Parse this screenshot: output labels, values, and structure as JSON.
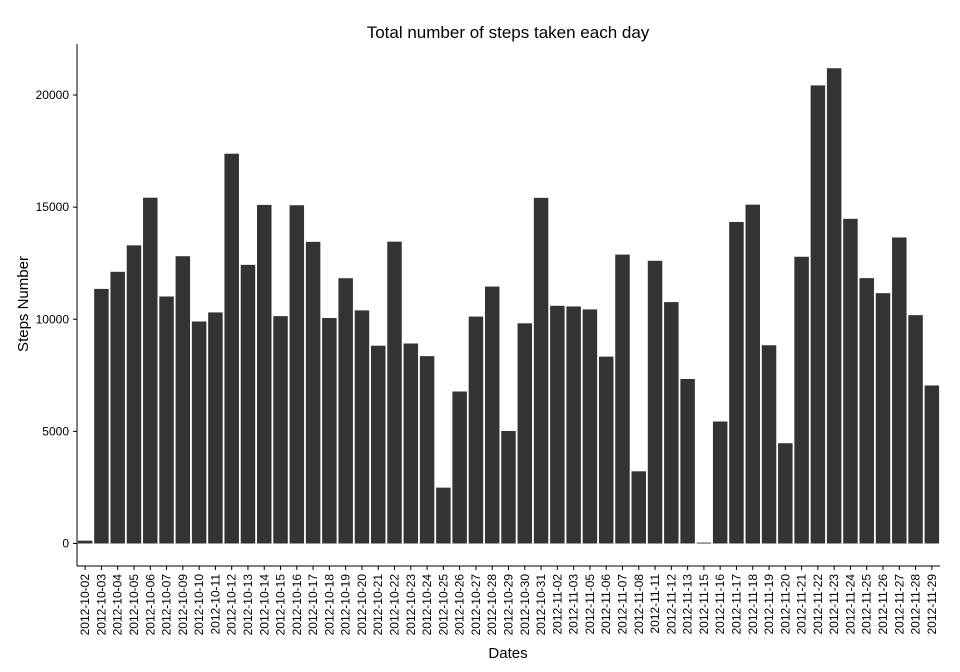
{
  "chart_data": {
    "type": "bar",
    "title": "Total number of steps taken each day",
    "xlabel": "Dates",
    "ylabel": "Steps Number",
    "ylim": [
      0,
      22500
    ],
    "yticks": [
      0,
      5000,
      10000,
      15000,
      20000
    ],
    "grid": false,
    "bar_color": "#333333",
    "categories": [
      "2012-10-02",
      "2012-10-03",
      "2012-10-04",
      "2012-10-05",
      "2012-10-06",
      "2012-10-07",
      "2012-10-09",
      "2012-10-10",
      "2012-10-11",
      "2012-10-12",
      "2012-10-13",
      "2012-10-14",
      "2012-10-15",
      "2012-10-16",
      "2012-10-17",
      "2012-10-18",
      "2012-10-19",
      "2012-10-20",
      "2012-10-21",
      "2012-10-22",
      "2012-10-23",
      "2012-10-24",
      "2012-10-25",
      "2012-10-26",
      "2012-10-27",
      "2012-10-28",
      "2012-10-29",
      "2012-10-30",
      "2012-10-31",
      "2012-11-02",
      "2012-11-03",
      "2012-11-05",
      "2012-11-06",
      "2012-11-07",
      "2012-11-08",
      "2012-11-11",
      "2012-11-12",
      "2012-11-13",
      "2012-11-15",
      "2012-11-16",
      "2012-11-17",
      "2012-11-18",
      "2012-11-19",
      "2012-11-20",
      "2012-11-21",
      "2012-11-22",
      "2012-11-23",
      "2012-11-24",
      "2012-11-25",
      "2012-11-26",
      "2012-11-27",
      "2012-11-28",
      "2012-11-29"
    ],
    "values": [
      126,
      11352,
      12116,
      13294,
      15420,
      11015,
      12811,
      9900,
      10304,
      17382,
      12426,
      15098,
      10139,
      15084,
      13452,
      10056,
      11829,
      10395,
      8821,
      13460,
      8918,
      8355,
      2492,
      6778,
      10119,
      11458,
      5018,
      9819,
      15414,
      10600,
      10571,
      10439,
      8334,
      12883,
      3219,
      12608,
      10765,
      7336,
      41,
      5441,
      14339,
      15110,
      8841,
      4472,
      12787,
      20427,
      21194,
      14478,
      11834,
      11162,
      13646,
      10183,
      7047
    ]
  }
}
